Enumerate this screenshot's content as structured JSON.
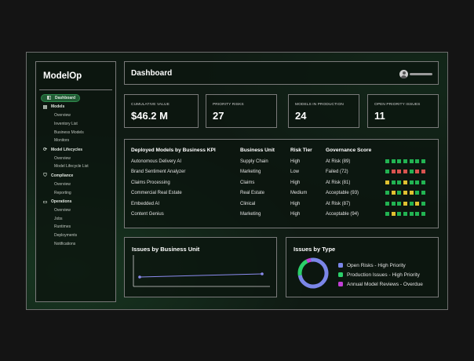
{
  "sidebar": {
    "logo": "ModelOp",
    "active": {
      "icon": "dashboard-icon",
      "label": "Dashboard"
    },
    "groups": [
      {
        "icon": "models-icon",
        "label": "Models",
        "items": [
          "Overview",
          "Inventory List",
          "Business Models",
          "Monitors"
        ]
      },
      {
        "icon": "lifecycle-icon",
        "label": "Model Lifecycles",
        "items": [
          "Overview",
          "Model Lifecycle List"
        ]
      },
      {
        "icon": "shield-icon",
        "label": "Compliance",
        "items": [
          "Overview",
          "Reporting"
        ]
      },
      {
        "icon": "operations-icon",
        "label": "Operations",
        "items": [
          "Overview",
          "Jobs",
          "Runtimes",
          "Deployments",
          "Notifications"
        ]
      }
    ]
  },
  "header": {
    "title": "Dashboard",
    "avatar_icon": "user-avatar-icon"
  },
  "kpis": [
    {
      "label": "Cumulative Value",
      "value": "$46.2 M"
    },
    {
      "label": "Priority Risks",
      "value": "27"
    },
    {
      "label": "Models in Production",
      "value": "24"
    },
    {
      "label": "Open Priority Issues",
      "value": "11"
    }
  ],
  "table": {
    "columns": [
      "Deployed Models by Business KPI",
      "Business Unit",
      "Risk Tier",
      "Governance Score"
    ],
    "rows": [
      {
        "model": "Autonomous Delivery AI",
        "unit": "Supply Chain",
        "tier": "High",
        "score": "At Risk (89)",
        "squares": [
          "green",
          "green",
          "green",
          "green",
          "green",
          "green",
          "green"
        ]
      },
      {
        "model": "Brand Sentiment Analyzer",
        "unit": "Marketing",
        "tier": "Low",
        "score": "Failed (72)",
        "squares": [
          "green",
          "red",
          "red",
          "red",
          "green",
          "red",
          "red"
        ]
      },
      {
        "model": "Claims Processing",
        "unit": "Claims",
        "tier": "High",
        "score": "At Risk (81)",
        "squares": [
          "yellow",
          "green",
          "green",
          "yellow",
          "green",
          "green",
          "green"
        ]
      },
      {
        "model": "Commercial Real Estate",
        "unit": "Real Estate",
        "tier": "Medium",
        "score": "Acceptable (93)",
        "squares": [
          "green",
          "yellow",
          "green",
          "yellow",
          "yellow",
          "green",
          "green"
        ]
      },
      {
        "model": "Embedded AI",
        "unit": "Clinical",
        "tier": "High",
        "score": "At Risk (87)",
        "squares": [
          "green",
          "green",
          "green",
          "yellow",
          "green",
          "yellow",
          "green"
        ]
      },
      {
        "model": "Content Genius",
        "unit": "Marketing",
        "tier": "High",
        "score": "Acceptable (94)",
        "squares": [
          "green",
          "yellow",
          "green",
          "green",
          "green",
          "green",
          "green"
        ]
      }
    ]
  },
  "issues_by_unit": {
    "title": "Issues by Business Unit",
    "chart_data": {
      "type": "line",
      "series": [
        {
          "values": [
            1,
            2
          ]
        }
      ],
      "color": "#8c8cf0"
    }
  },
  "issues_by_type": {
    "title": "Issues by Type",
    "legend": [
      {
        "label": "Open Risks - High Priority",
        "color": "#7b86e8"
      },
      {
        "label": "Production Issues - High Priority",
        "color": "#2bcf6a"
      },
      {
        "label": "Annual Model Reviews - Overdue",
        "color": "#c23fd6"
      }
    ],
    "chart_data": {
      "type": "pie",
      "slices": [
        {
          "label": "Open Risks - High Priority",
          "value": 75
        },
        {
          "label": "Production Issues - High Priority",
          "value": 20
        },
        {
          "label": "Annual Model Reviews - Overdue",
          "value": 5
        }
      ]
    }
  },
  "colors": {
    "green": "#22b352",
    "red": "#d9534f",
    "yellow": "#e0c030",
    "accent": "#1f5a33"
  }
}
